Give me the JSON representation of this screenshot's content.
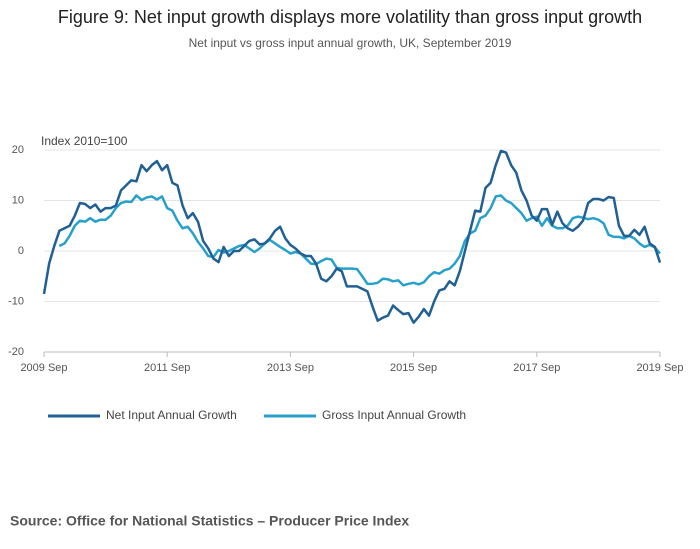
{
  "chart_data": {
    "type": "line",
    "title": "Figure 9: Net input growth displays more volatility than gross input growth",
    "subtitle": "Net input vs gross input annual growth, UK, September 2019",
    "y_axis_label": "Index 2010=100",
    "source": "Source: Office for National Statistics – Producer Price Index",
    "categories": [
      "2009 Sep",
      null,
      null,
      null,
      null,
      null,
      null,
      null,
      null,
      null,
      null,
      null,
      null,
      null,
      null,
      null,
      null,
      null,
      null,
      null,
      null,
      null,
      null,
      null,
      "2011 Sep",
      null,
      null,
      null,
      null,
      null,
      null,
      null,
      null,
      null,
      null,
      null,
      null,
      null,
      null,
      null,
      null,
      null,
      null,
      null,
      null,
      null,
      null,
      null,
      "2013 Sep",
      null,
      null,
      null,
      null,
      null,
      null,
      null,
      null,
      null,
      null,
      null,
      null,
      null,
      null,
      null,
      null,
      null,
      null,
      null,
      null,
      null,
      null,
      null,
      "2015 Sep",
      null,
      null,
      null,
      null,
      null,
      null,
      null,
      null,
      null,
      null,
      null,
      null,
      null,
      null,
      null,
      null,
      null,
      null,
      null,
      null,
      null,
      null,
      null,
      "2017 Sep",
      null,
      null,
      null,
      null,
      null,
      null,
      null,
      null,
      null,
      null,
      null,
      null,
      null,
      null,
      null,
      null,
      null,
      null,
      null,
      null,
      null,
      null,
      null,
      "2019 Sep"
    ],
    "series": [
      {
        "name": "Net Input Annual Growth",
        "color": "#206095",
        "values": [
          -8.5,
          -2.5,
          1,
          4,
          4.5,
          5,
          7,
          9.5,
          9.3,
          8.5,
          9.2,
          7.8,
          8.5,
          8.5,
          9,
          12,
          13,
          14,
          13.8,
          17,
          15.8,
          17,
          17.8,
          16,
          17,
          13.5,
          13,
          9,
          6.5,
          7.5,
          5.8,
          2,
          0.5,
          -1.5,
          -2.2,
          0.8,
          -1,
          0,
          0,
          1,
          2,
          2.3,
          1.3,
          1.5,
          2.5,
          4,
          4.8,
          2.5,
          1.2,
          0.5,
          -0.5,
          -1,
          -1,
          -2.5,
          -5.5,
          -6,
          -5,
          -3.5,
          -4,
          -7,
          -7,
          -7,
          -7.5,
          -8,
          -11,
          -13.8,
          -13.2,
          -12.8,
          -10.8,
          -11.7,
          -12.5,
          -12.3,
          -14.2,
          -13,
          -11.5,
          -12.8,
          -10,
          -7.8,
          -7.5,
          -6,
          -6.8,
          -4,
          0,
          4,
          8,
          7.8,
          12.5,
          13.5,
          17,
          19.8,
          19.5,
          17,
          15.5,
          12,
          10,
          7,
          6,
          8.3,
          8.3,
          5.2,
          7.8,
          5.5,
          4.5,
          4,
          4.8,
          6,
          9.5,
          10.3,
          10.3,
          10,
          10.7,
          10.5,
          5,
          3,
          3,
          4.2,
          3.2,
          4.8,
          1.5,
          0.8,
          -2.3
        ]
      },
      {
        "name": "Gross Input Annual Growth",
        "color": "#27a0cc",
        "values": [
          null,
          null,
          null,
          1,
          1.5,
          3,
          5,
          6,
          5.8,
          6.5,
          5.8,
          6.2,
          6.2,
          7,
          8.5,
          9.5,
          9.8,
          9.7,
          11,
          10.1,
          10.6,
          10.8,
          10.2,
          10.8,
          8.5,
          8,
          6,
          4.5,
          4.8,
          3.5,
          1.8,
          0.5,
          -1,
          -1.2,
          0.2,
          -0.3,
          0,
          0.5,
          1,
          1.2,
          0.5,
          -0.2,
          0.5,
          1.5,
          2.2,
          1.5,
          0.8,
          0.2,
          -0.5,
          -0.2,
          -0.5,
          -1.5,
          -2.5,
          -2.6,
          -2,
          -1.5,
          -1.7,
          -3.3,
          -3.5,
          -3.5,
          -3.5,
          -3.6,
          -5,
          -6.5,
          -6.5,
          -6.3,
          -5.5,
          -5.6,
          -6,
          -5.8,
          -6.8,
          -6.5,
          -6.3,
          -6.6,
          -6.2,
          -5,
          -4.2,
          -4.5,
          -3.8,
          -3.5,
          -2.5,
          -1,
          2,
          3.5,
          4,
          6.5,
          7,
          8.5,
          10.8,
          11,
          10,
          9.5,
          8.5,
          7.5,
          6,
          6.5,
          6.8,
          5,
          6.5,
          5,
          4.5,
          4.5,
          5,
          6.5,
          6.8,
          6.6,
          6.3,
          6.5,
          6.2,
          5.5,
          3.2,
          2.8,
          2.8,
          2.5,
          3,
          2.5,
          1.5,
          0.8,
          1.2,
          0.7,
          -0.5
        ]
      }
    ],
    "ylim": [
      -20,
      20
    ],
    "yticks": [
      -20,
      -10,
      0,
      10,
      20
    ],
    "grid": true,
    "legend": "bottom"
  }
}
